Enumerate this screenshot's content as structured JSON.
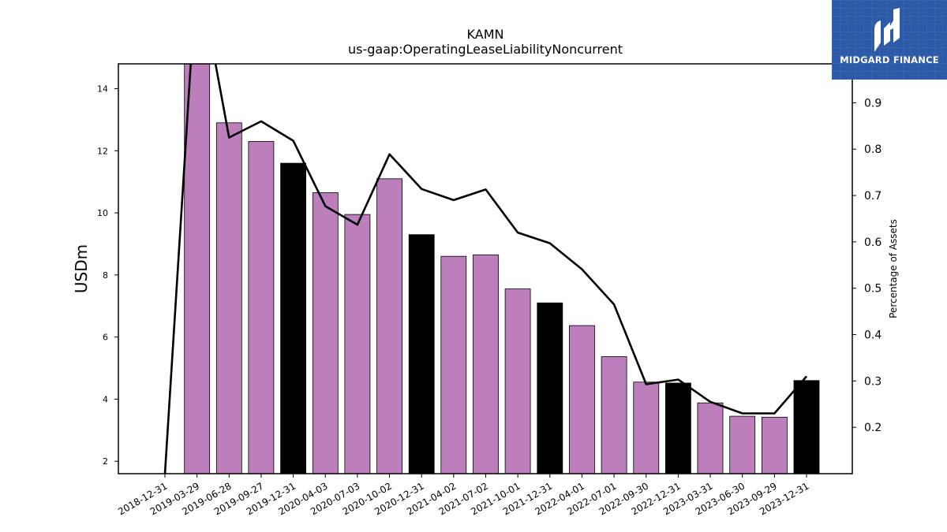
{
  "logo": {
    "text": "MIDGARD FINANCE"
  },
  "chart_data": {
    "type": "bar",
    "title": "KAMN",
    "subtitle": "us-gaap:OperatingLeaseLiabilityNoncurrent",
    "ylabel": "USDm",
    "y2label": "Percentage of Assets",
    "ylim": [
      1.6,
      14.8
    ],
    "y2lim": [
      0.1,
      0.984
    ],
    "yticks": [
      2,
      4,
      6,
      8,
      10,
      12,
      14
    ],
    "y2ticks": [
      0.2,
      0.3,
      0.4,
      0.5,
      0.6,
      0.7,
      0.8,
      0.9
    ],
    "grid": false,
    "legend": "none",
    "categories": [
      "2018-12-31",
      "2019-03-29",
      "2019-06-28",
      "2019-09-27",
      "2019-12-31",
      "2020-04-03",
      "2020-07-03",
      "2020-10-02",
      "2020-12-31",
      "2021-04-02",
      "2021-07-02",
      "2021-10-01",
      "2021-12-31",
      "2022-04-01",
      "2022-07-01",
      "2022-09-30",
      "2022-12-31",
      "2023-03-31",
      "2023-06-30",
      "2023-09-29",
      "2023-12-31"
    ],
    "series": [
      {
        "type": "bar",
        "axis": "left",
        "values": [
          null,
          14.85,
          12.9,
          12.3,
          11.6,
          10.65,
          9.95,
          11.1,
          9.3,
          8.6,
          8.65,
          7.55,
          7.1,
          6.37,
          5.37,
          4.55,
          4.52,
          3.88,
          3.45,
          3.42,
          4.6
        ]
      },
      {
        "type": "line",
        "axis": "right",
        "values": [
          0.1,
          1.2,
          0.825,
          0.86,
          0.818,
          0.677,
          0.637,
          0.789,
          0.714,
          0.69,
          0.713,
          0.62,
          0.597,
          0.541,
          0.465,
          0.293,
          0.303,
          0.255,
          0.23,
          0.23,
          0.31
        ]
      }
    ],
    "colors": {
      "bar": "#bc7fbc",
      "bar_year_end": "#000000",
      "line": "#000000"
    }
  }
}
